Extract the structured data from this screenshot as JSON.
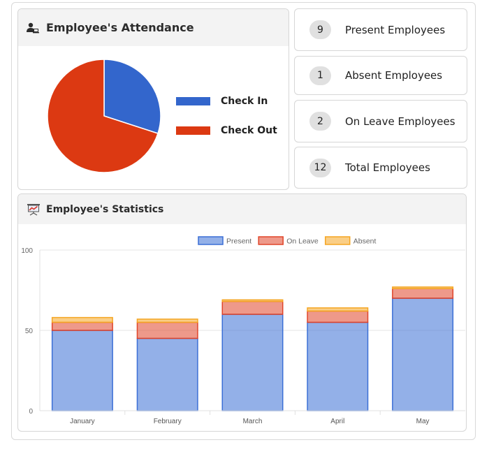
{
  "attendance": {
    "title": "Employee's Attendance",
    "header_icon": "user-laptop-icon",
    "pie": {
      "type": "pie",
      "slices": [
        {
          "label": "Check In",
          "value": 3,
          "color": "#3366cc"
        },
        {
          "label": "Check Out",
          "value": 7,
          "color": "#dc3912"
        }
      ]
    },
    "legend": [
      {
        "label": "Check In",
        "color": "#3366cc"
      },
      {
        "label": "Check Out",
        "color": "#dc3912"
      }
    ]
  },
  "stats_cards": [
    {
      "count": "9",
      "label": "Present Employees"
    },
    {
      "count": "1",
      "label": "Absent Employees"
    },
    {
      "count": "2",
      "label": "On Leave Employees"
    },
    {
      "count": "12",
      "label": "Total Employees"
    }
  ],
  "statistics": {
    "title": "Employee's Statistics",
    "header_icon": "presentation-chart-icon"
  },
  "chart_data": {
    "type": "bar",
    "stacked": true,
    "categories": [
      "January",
      "February",
      "March",
      "April",
      "May"
    ],
    "series": [
      {
        "name": "Present",
        "values": [
          50,
          45,
          60,
          55,
          70
        ],
        "color": "#3b6fd6",
        "fill": "rgba(59,111,214,0.55)"
      },
      {
        "name": "On Leave",
        "values": [
          5,
          10,
          8,
          7,
          6
        ],
        "color": "#e0452a",
        "fill": "rgba(224,69,42,0.55)"
      },
      {
        "name": "Absent",
        "values": [
          3,
          2,
          1,
          2,
          1
        ],
        "color": "#f5a623",
        "fill": "rgba(245,166,35,0.55)"
      }
    ],
    "yticks": [
      0,
      50,
      100
    ],
    "ylim": [
      0,
      100
    ],
    "legend_position": "top-center",
    "grid": true
  }
}
